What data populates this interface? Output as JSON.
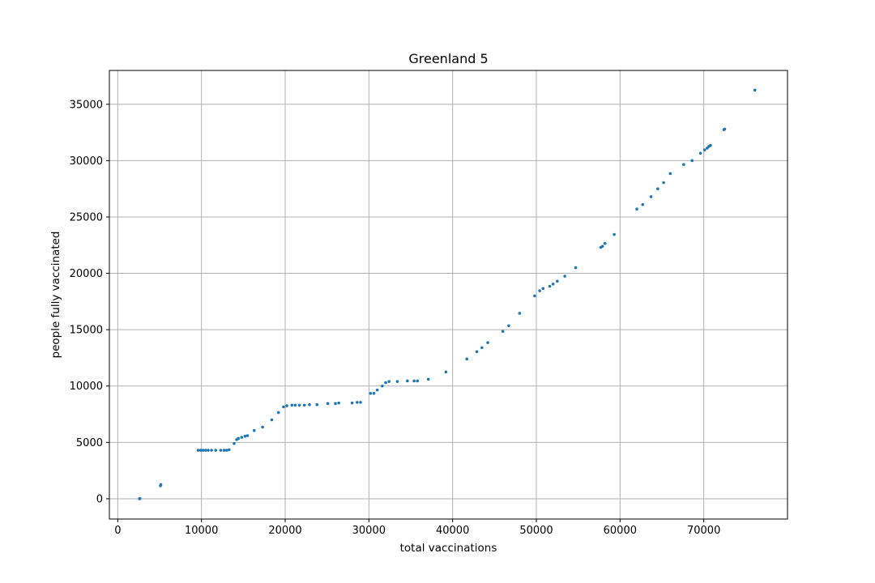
{
  "chart_data": {
    "type": "scatter",
    "title": "Greenland 5",
    "xlabel": "total vaccinations",
    "ylabel": "people fully vaccinated",
    "xlim": [
      -1000,
      80000
    ],
    "ylim": [
      -1800,
      38000
    ],
    "xticks": [
      0,
      10000,
      20000,
      30000,
      40000,
      50000,
      60000,
      70000
    ],
    "yticks": [
      0,
      5000,
      10000,
      15000,
      20000,
      25000,
      30000,
      35000
    ],
    "xtick_labels": [
      "0",
      "10000",
      "20000",
      "30000",
      "40000",
      "50000",
      "60000",
      "70000"
    ],
    "ytick_labels": [
      "0",
      "5000",
      "10000",
      "15000",
      "20000",
      "25000",
      "30000",
      "35000"
    ],
    "grid": true,
    "marker_color": "#1f77b4",
    "points": [
      [
        2600,
        0
      ],
      [
        2650,
        30
      ],
      [
        5100,
        1150
      ],
      [
        5150,
        1250
      ],
      [
        9600,
        4300
      ],
      [
        9900,
        4300
      ],
      [
        10200,
        4300
      ],
      [
        10500,
        4300
      ],
      [
        10800,
        4300
      ],
      [
        11200,
        4300
      ],
      [
        11700,
        4300
      ],
      [
        12300,
        4300
      ],
      [
        12700,
        4300
      ],
      [
        13000,
        4300
      ],
      [
        13300,
        4350
      ],
      [
        13900,
        4900
      ],
      [
        14200,
        5250
      ],
      [
        14400,
        5350
      ],
      [
        14800,
        5450
      ],
      [
        15200,
        5550
      ],
      [
        15500,
        5600
      ],
      [
        16300,
        6050
      ],
      [
        17300,
        6350
      ],
      [
        18400,
        7000
      ],
      [
        19200,
        7650
      ],
      [
        19800,
        8150
      ],
      [
        20200,
        8250
      ],
      [
        20800,
        8300
      ],
      [
        21200,
        8300
      ],
      [
        21700,
        8300
      ],
      [
        22300,
        8300
      ],
      [
        22900,
        8350
      ],
      [
        23800,
        8350
      ],
      [
        25100,
        8450
      ],
      [
        26000,
        8450
      ],
      [
        26400,
        8500
      ],
      [
        28000,
        8500
      ],
      [
        28600,
        8550
      ],
      [
        29000,
        8550
      ],
      [
        30200,
        9350
      ],
      [
        30600,
        9350
      ],
      [
        31000,
        9650
      ],
      [
        31600,
        10000
      ],
      [
        32000,
        10300
      ],
      [
        32400,
        10400
      ],
      [
        33400,
        10400
      ],
      [
        34600,
        10450
      ],
      [
        35400,
        10450
      ],
      [
        35800,
        10450
      ],
      [
        37100,
        10600
      ],
      [
        39200,
        11250
      ],
      [
        41700,
        12400
      ],
      [
        42900,
        13050
      ],
      [
        43500,
        13400
      ],
      [
        44200,
        13850
      ],
      [
        46000,
        14850
      ],
      [
        46700,
        15350
      ],
      [
        48000,
        16450
      ],
      [
        49800,
        18000
      ],
      [
        50400,
        18450
      ],
      [
        50800,
        18650
      ],
      [
        51600,
        18850
      ],
      [
        52000,
        19050
      ],
      [
        52500,
        19300
      ],
      [
        53400,
        19750
      ],
      [
        54700,
        20500
      ],
      [
        57700,
        22300
      ],
      [
        57900,
        22400
      ],
      [
        58200,
        22650
      ],
      [
        59300,
        23450
      ],
      [
        62000,
        25700
      ],
      [
        62700,
        26100
      ],
      [
        63700,
        26800
      ],
      [
        64500,
        27500
      ],
      [
        65200,
        28050
      ],
      [
        66000,
        28850
      ],
      [
        67600,
        29650
      ],
      [
        68600,
        30000
      ],
      [
        69600,
        30650
      ],
      [
        70100,
        30950
      ],
      [
        70400,
        31100
      ],
      [
        70600,
        31250
      ],
      [
        70800,
        31350
      ],
      [
        72400,
        32750
      ],
      [
        72500,
        32800
      ],
      [
        76100,
        36250
      ]
    ]
  }
}
